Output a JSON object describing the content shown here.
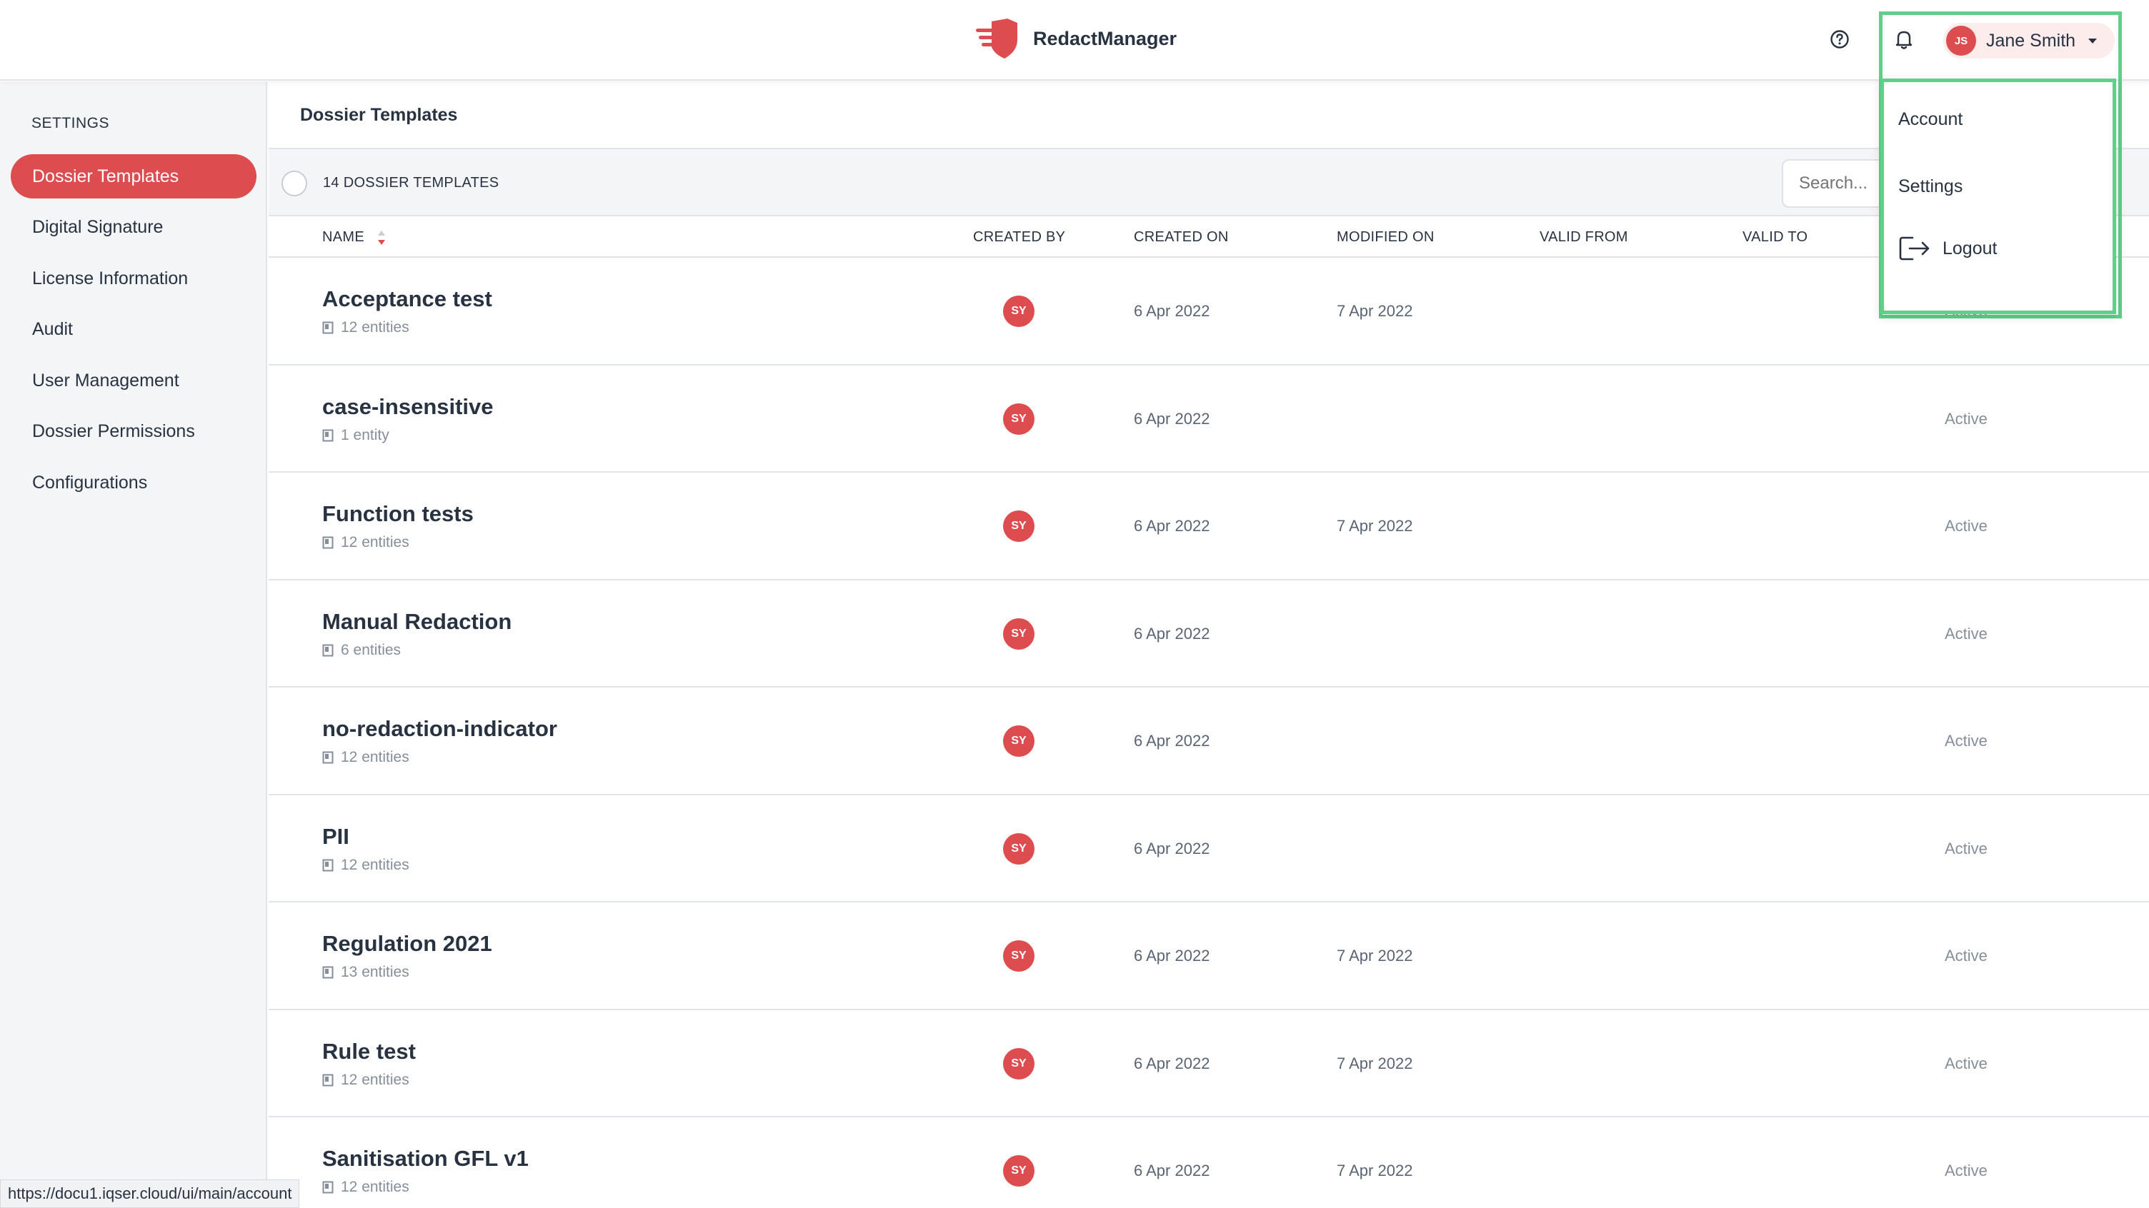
{
  "app": {
    "name": "RedactManager",
    "brand_color": "#dd4d50",
    "highlight_color": "#5fcf8a"
  },
  "header": {
    "help_icon": "help-circle-icon",
    "notification_icon": "bell-icon",
    "user": {
      "initials": "JS",
      "name": "Jane Smith"
    }
  },
  "user_menu": {
    "items": [
      {
        "label": "Account"
      },
      {
        "label": "Settings"
      },
      {
        "label": "Logout",
        "icon": "logout-icon"
      }
    ]
  },
  "sidebar": {
    "heading": "SETTINGS",
    "items": [
      {
        "label": "Dossier Templates",
        "active": true
      },
      {
        "label": "Digital Signature"
      },
      {
        "label": "License Information"
      },
      {
        "label": "Audit"
      },
      {
        "label": "User Management"
      },
      {
        "label": "Dossier Permissions"
      },
      {
        "label": "Configurations"
      }
    ]
  },
  "main": {
    "title": "Dossier Templates",
    "count_label": "14 DOSSIER TEMPLATES",
    "search_placeholder": "Search...",
    "columns": {
      "name": "NAME",
      "created_by": "CREATED BY",
      "created_on": "CREATED ON",
      "modified_on": "MODIFIED ON",
      "valid_from": "VALID FROM",
      "valid_to": "VALID TO"
    },
    "rows": [
      {
        "name": "Acceptance test",
        "entities": "12 entities",
        "created_by": "SY",
        "created_on": "6 Apr 2022",
        "modified_on": "7 Apr 2022",
        "status": "Active"
      },
      {
        "name": "case-insensitive",
        "entities": "1 entity",
        "created_by": "SY",
        "created_on": "6 Apr 2022",
        "modified_on": "",
        "status": "Active"
      },
      {
        "name": "Function tests",
        "entities": "12 entities",
        "created_by": "SY",
        "created_on": "6 Apr 2022",
        "modified_on": "7 Apr 2022",
        "status": "Active"
      },
      {
        "name": "Manual Redaction",
        "entities": "6 entities",
        "created_by": "SY",
        "created_on": "6 Apr 2022",
        "modified_on": "",
        "status": "Active"
      },
      {
        "name": "no-redaction-indicator",
        "entities": "12 entities",
        "created_by": "SY",
        "created_on": "6 Apr 2022",
        "modified_on": "",
        "status": "Active"
      },
      {
        "name": "PII",
        "entities": "12 entities",
        "created_by": "SY",
        "created_on": "6 Apr 2022",
        "modified_on": "",
        "status": "Active"
      },
      {
        "name": "Regulation 2021",
        "entities": "13 entities",
        "created_by": "SY",
        "created_on": "6 Apr 2022",
        "modified_on": "7 Apr 2022",
        "status": "Active"
      },
      {
        "name": "Rule test",
        "entities": "12 entities",
        "created_by": "SY",
        "created_on": "6 Apr 2022",
        "modified_on": "7 Apr 2022",
        "status": "Active"
      },
      {
        "name": "Sanitisation GFL v1",
        "entities": "12 entities",
        "created_by": "SY",
        "created_on": "6 Apr 2022",
        "modified_on": "7 Apr 2022",
        "status": "Active"
      }
    ]
  },
  "status_bar": {
    "url": "https://docu1.iqser.cloud/ui/main/account"
  }
}
